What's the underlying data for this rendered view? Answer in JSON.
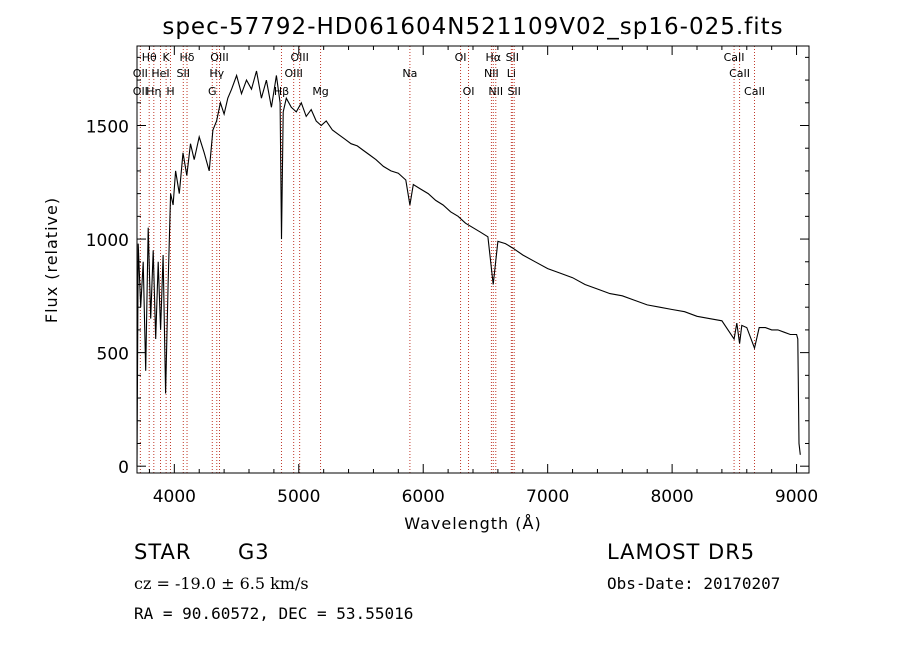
{
  "chart_data": {
    "type": "line",
    "title": "spec-57792-HD061604N521109V02_sp16-025.fits",
    "xlabel": "Wavelength (Å)",
    "ylabel": "Flux (relative)",
    "xlim": [
      3700,
      9100
    ],
    "ylim": [
      -30,
      1850
    ],
    "xticks": [
      4000,
      5000,
      6000,
      7000,
      8000,
      9000
    ],
    "xtick_labels": [
      "4000",
      "5000",
      "6000",
      "7000",
      "8000",
      "9000"
    ],
    "yticks": [
      0,
      500,
      1000,
      1500
    ],
    "ytick_labels": [
      "0",
      "500",
      "1000",
      "1500"
    ],
    "grid": false,
    "series": [
      {
        "x": [
          3700,
          3710,
          3730,
          3750,
          3770,
          3790,
          3810,
          3830,
          3850,
          3870,
          3890,
          3910,
          3930,
          3950,
          3970,
          3990,
          4010,
          4040,
          4070,
          4100,
          4130,
          4160,
          4200,
          4240,
          4280,
          4310,
          4340,
          4370,
          4400,
          4430,
          4460,
          4500,
          4540,
          4580,
          4620,
          4660,
          4700,
          4740,
          4780,
          4820,
          4850,
          4861,
          4875,
          4900,
          4940,
          4980,
          5020,
          5060,
          5100,
          5140,
          5180,
          5220,
          5270,
          5320,
          5370,
          5420,
          5470,
          5520,
          5570,
          5620,
          5680,
          5740,
          5800,
          5860,
          5893,
          5920,
          5980,
          6040,
          6100,
          6160,
          6220,
          6280,
          6340,
          6400,
          6460,
          6520,
          6562,
          6600,
          6660,
          6720,
          6800,
          6900,
          7000,
          7100,
          7200,
          7300,
          7400,
          7500,
          7600,
          7700,
          7800,
          7900,
          8000,
          8100,
          8200,
          8300,
          8400,
          8498,
          8520,
          8542,
          8560,
          8600,
          8662,
          8700,
          8750,
          8800,
          8850,
          8900,
          8950,
          9000,
          9010,
          9020,
          9030
        ],
        "y": [
          0,
          980,
          700,
          900,
          420,
          1050,
          650,
          950,
          560,
          900,
          600,
          930,
          320,
          800,
          1200,
          1150,
          1300,
          1200,
          1380,
          1280,
          1420,
          1350,
          1450,
          1380,
          1300,
          1480,
          1520,
          1600,
          1550,
          1620,
          1660,
          1720,
          1640,
          1700,
          1660,
          1740,
          1620,
          1700,
          1580,
          1720,
          1600,
          1000,
          1560,
          1620,
          1580,
          1560,
          1600,
          1540,
          1570,
          1520,
          1500,
          1520,
          1480,
          1460,
          1440,
          1420,
          1410,
          1390,
          1370,
          1350,
          1320,
          1300,
          1290,
          1260,
          1150,
          1240,
          1220,
          1200,
          1170,
          1150,
          1120,
          1100,
          1070,
          1050,
          1030,
          1010,
          800,
          990,
          980,
          960,
          930,
          900,
          870,
          850,
          830,
          800,
          780,
          760,
          750,
          730,
          710,
          700,
          690,
          680,
          660,
          650,
          640,
          560,
          630,
          540,
          620,
          610,
          520,
          610,
          610,
          600,
          600,
          590,
          580,
          580,
          560,
          100,
          50
        ]
      }
    ],
    "lines": [
      {
        "label": "Hθ",
        "x": 3798
      },
      {
        "label": "K",
        "x": 3934
      },
      {
        "label": "Hδ",
        "x": 4102
      },
      {
        "label": "OII",
        "x": 3727
      },
      {
        "label": "HeI",
        "x": 3889
      },
      {
        "label": "SII",
        "x": 4072
      },
      {
        "label": "OII",
        "x": 3727
      },
      {
        "label": "Hη",
        "x": 3835
      },
      {
        "label": "H",
        "x": 3969
      },
      {
        "label": "OIII",
        "x": 4363
      },
      {
        "label": "Hγ",
        "x": 4341
      },
      {
        "label": "G",
        "x": 4305
      },
      {
        "label": "OIII",
        "x": 5007
      },
      {
        "label": "OIII",
        "x": 4959
      },
      {
        "label": "Hβ",
        "x": 4861
      },
      {
        "label": "Mg",
        "x": 5175
      },
      {
        "label": "Na",
        "x": 5893
      },
      {
        "label": "OI",
        "x": 6300
      },
      {
        "label": "OI",
        "x": 6364
      },
      {
        "label": "Hα",
        "x": 6563
      },
      {
        "label": "NII",
        "x": 6548
      },
      {
        "label": "NII",
        "x": 6583
      },
      {
        "label": "SII",
        "x": 6716
      },
      {
        "label": "Li",
        "x": 6708
      },
      {
        "label": "SII",
        "x": 6731
      },
      {
        "label": "CaII",
        "x": 8498
      },
      {
        "label": "CaII",
        "x": 8542
      },
      {
        "label": "CaII",
        "x": 8662
      }
    ],
    "line_markers_x": [
      3727,
      3798,
      3835,
      3889,
      3934,
      3969,
      4072,
      4102,
      4305,
      4341,
      4363,
      4861,
      4959,
      5007,
      5175,
      5893,
      6300,
      6364,
      6548,
      6563,
      6583,
      6708,
      6716,
      6731,
      8498,
      8542,
      8662
    ]
  },
  "info": {
    "object_class": "STAR",
    "subclass": "G3",
    "survey": "LAMOST DR5",
    "redshift": "cz = -19.0 ± 6.5 km/s",
    "obs_date": "Obs-Date: 20170207",
    "coords": "RA = 90.60572, DEC = 53.55016"
  },
  "colors": {
    "spectrum": "#000000",
    "line_marker": "#c0392b"
  }
}
